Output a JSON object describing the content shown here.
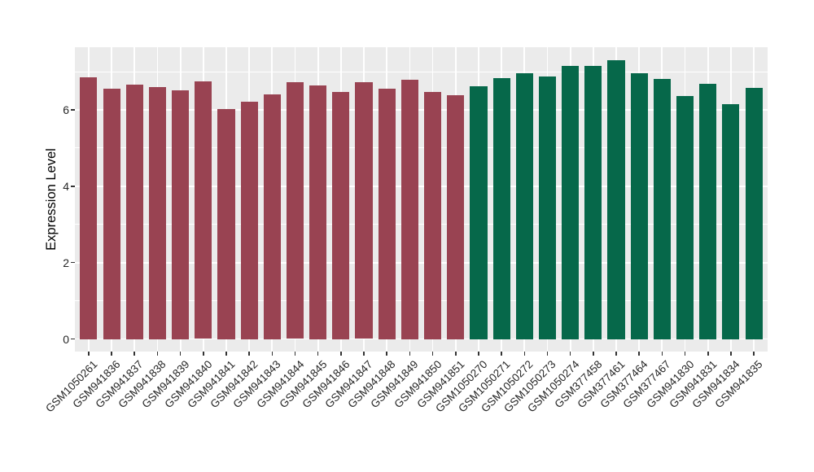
{
  "style": {
    "figure_bg": "#FFFFFF",
    "panel_bg": "#EBEBEB",
    "grid_color": "#FFFFFF",
    "axis_text_color": "#262626",
    "axis_title_color": "#000000",
    "tick_mark_color": "#333333"
  },
  "chart_data": {
    "type": "bar",
    "title": "",
    "xlabel": "",
    "ylabel": "Expression Level",
    "categories": [
      "GSM1050261",
      "GSM941836",
      "GSM941837",
      "GSM941838",
      "GSM941839",
      "GSM941840",
      "GSM941841",
      "GSM941842",
      "GSM941843",
      "GSM941844",
      "GSM941845",
      "GSM941846",
      "GSM941847",
      "GSM941848",
      "GSM941849",
      "GSM941850",
      "GSM941851",
      "GSM1050270",
      "GSM1050271",
      "GSM1050272",
      "GSM1050273",
      "GSM1050274",
      "GSM377458",
      "GSM377461",
      "GSM377464",
      "GSM377467",
      "GSM941830",
      "GSM941831",
      "GSM941834",
      "GSM941835"
    ],
    "values": [
      6.86,
      6.55,
      6.67,
      6.6,
      6.51,
      6.74,
      6.02,
      6.21,
      6.41,
      6.73,
      6.64,
      6.47,
      6.73,
      6.55,
      6.79,
      6.46,
      6.38,
      6.62,
      6.84,
      6.96,
      6.87,
      7.15,
      7.14,
      7.3,
      6.96,
      6.81,
      6.36,
      6.69,
      6.15,
      6.58
    ],
    "group_split_index": 17,
    "group_colors": [
      "#994352",
      "#06684A"
    ],
    "yticks": [
      0,
      2,
      4,
      6
    ],
    "yticks_minor": [
      1,
      3,
      5,
      7
    ],
    "panel_ylim": [
      -0.33,
      7.64
    ],
    "grid": true,
    "legend": "none",
    "x_tick_rotation_deg": 45,
    "bar_width_fraction": 0.75
  }
}
